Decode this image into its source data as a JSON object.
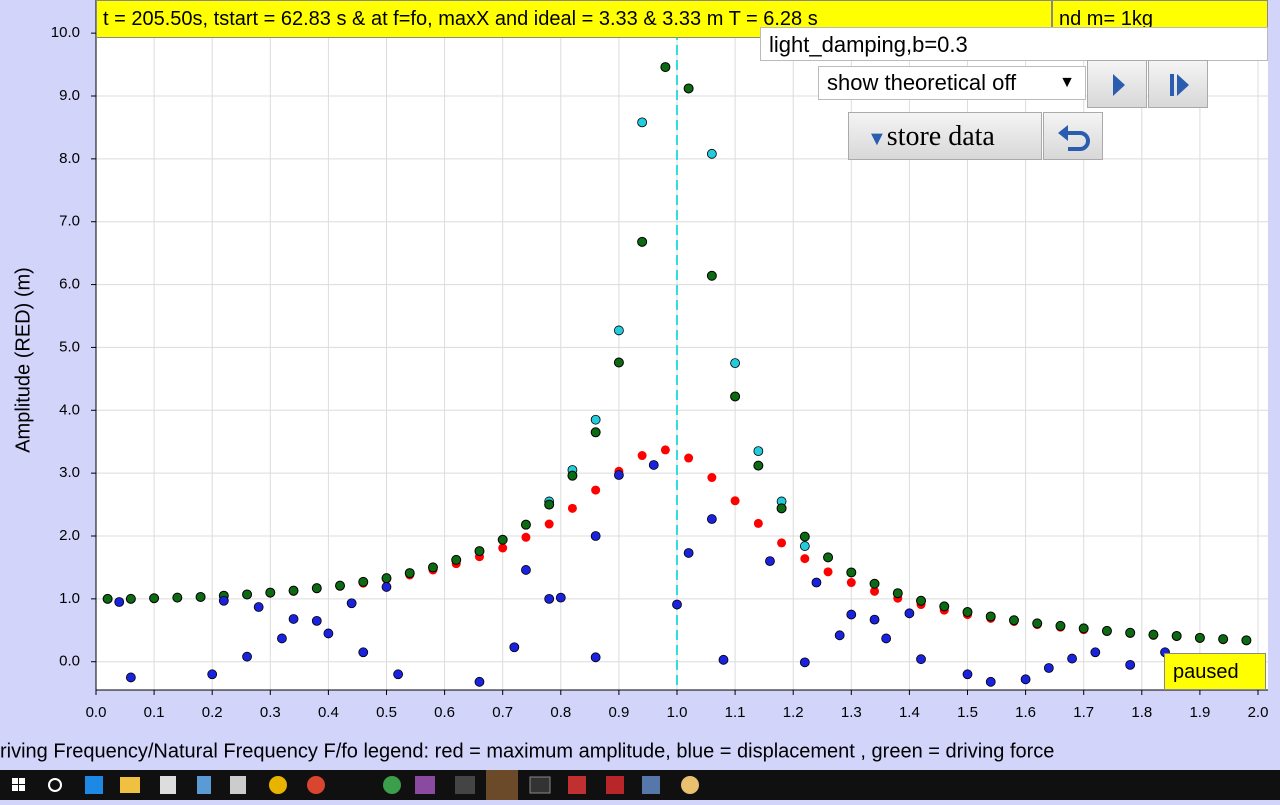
{
  "header": {
    "status_text": "t = 205.50s, tstart = 62.83 s & at f=fo, maxX and ideal = 3.33 & 3.33 m T = 6.28 s",
    "mass_text": "nd m= 1kg"
  },
  "controls": {
    "damping_field": "light_damping,b=0.3",
    "theory_select": "show theoretical off",
    "store_button": "store data",
    "state_label": "paused"
  },
  "chart_data": {
    "type": "scatter",
    "x_label": "riving Frequency/Natural Frequency F/fo legend: red = maximum amplitude, blue = displacement , green = driving force",
    "y_label": "Amplitude (RED) (m)",
    "xlim": [
      0,
      2.0
    ],
    "ylim": [
      -0.45,
      10.4
    ],
    "grid": true,
    "xticks": [
      {
        "value": 0,
        "label": "0.0"
      },
      0.1,
      0.2,
      0.3,
      0.4,
      0.5,
      0.6,
      0.7,
      0.8,
      0.9,
      {
        "value": 1,
        "label": "1.0"
      },
      1.1,
      1.2,
      1.3,
      1.4,
      1.5,
      1.6,
      1.7,
      1.8,
      1.9,
      {
        "value": 2,
        "label": "2.0"
      }
    ],
    "yticks": [
      {
        "value": 0,
        "label": "0.0"
      },
      {
        "value": 1,
        "label": "1.0"
      },
      {
        "value": 2,
        "label": "2.0"
      },
      {
        "value": 3,
        "label": "3.0"
      },
      {
        "value": 4,
        "label": "4.0"
      },
      {
        "value": 5,
        "label": "5.0"
      },
      {
        "value": 6,
        "label": "6.0"
      },
      {
        "value": 7,
        "label": "7.0"
      },
      {
        "value": 8,
        "label": "8.0"
      },
      {
        "value": 9,
        "label": "9.0"
      },
      {
        "value": 10,
        "label": "10.0"
      }
    ],
    "x": [
      0.02,
      0.06,
      0.1,
      0.14,
      0.18,
      0.22,
      0.26,
      0.3,
      0.34,
      0.38,
      0.42,
      0.46,
      0.5,
      0.54,
      0.58,
      0.62,
      0.66,
      0.7,
      0.74,
      0.78,
      0.82,
      0.86,
      0.9,
      0.94,
      0.98,
      1.02,
      1.06,
      1.1,
      1.14,
      1.18,
      1.22,
      1.26,
      1.3,
      1.34,
      1.38,
      1.42,
      1.46,
      1.5,
      1.54,
      1.58,
      1.62,
      1.66,
      1.7,
      1.74,
      1.78,
      1.82,
      1.86,
      1.9,
      1.94,
      1.98
    ],
    "series": [
      {
        "color": "#ff0000",
        "values": [
          1.0,
          1.0,
          1.01,
          1.02,
          1.03,
          1.05,
          1.07,
          1.09,
          1.12,
          1.16,
          1.2,
          1.25,
          1.31,
          1.38,
          1.46,
          1.56,
          1.67,
          1.81,
          1.98,
          2.19,
          2.44,
          2.73,
          3.03,
          3.28,
          3.37,
          3.24,
          2.93,
          2.56,
          2.2,
          1.89,
          1.64,
          1.43,
          1.26,
          1.12,
          1.01,
          0.91,
          0.82,
          0.75,
          0.69,
          0.64,
          0.59,
          0.55,
          0.51,
          0.48,
          0.45,
          0.42,
          0.4,
          0.37,
          0.35,
          0.34
        ]
      },
      {
        "color": "#22ccdd",
        "values": [
          null,
          null,
          null,
          null,
          null,
          null,
          null,
          null,
          null,
          null,
          null,
          null,
          null,
          null,
          null,
          null,
          null,
          null,
          null,
          2.55,
          3.05,
          3.85,
          5.27,
          8.58,
          null,
          null,
          8.08,
          4.75,
          3.35,
          2.55,
          1.84,
          null,
          null,
          null,
          null,
          null,
          null,
          null,
          null,
          null,
          null,
          null,
          null,
          null,
          null,
          null,
          null,
          null,
          null,
          null
        ]
      },
      {
        "color": "#0b6a12",
        "values": [
          1.0,
          1.0,
          1.01,
          1.02,
          1.03,
          1.05,
          1.07,
          1.1,
          1.13,
          1.17,
          1.21,
          1.27,
          1.33,
          1.41,
          1.5,
          1.62,
          1.76,
          1.94,
          2.18,
          2.5,
          2.96,
          3.65,
          4.76,
          6.68,
          9.46,
          9.12,
          6.14,
          4.22,
          3.12,
          2.44,
          1.99,
          1.66,
          1.42,
          1.24,
          1.09,
          0.97,
          0.88,
          0.79,
          0.72,
          0.66,
          0.61,
          0.57,
          0.53,
          0.49,
          0.46,
          0.43,
          0.41,
          0.38,
          0.36,
          0.34
        ]
      },
      {
        "color": "#1a22dd",
        "x": [
          0.04,
          0.06,
          0.2,
          0.22,
          0.26,
          0.28,
          0.32,
          0.34,
          0.38,
          0.4,
          0.44,
          0.46,
          0.5,
          0.52,
          0.66,
          0.72,
          0.74,
          0.78,
          0.8,
          0.86,
          0.86,
          0.9,
          0.96,
          1.0,
          1.02,
          1.06,
          1.08,
          1.16,
          1.22,
          1.24,
          1.28,
          1.3,
          1.34,
          1.36,
          1.4,
          1.42,
          1.5,
          1.54,
          1.6,
          1.64,
          1.68,
          1.72,
          1.78,
          1.84
        ],
        "values": [
          0.95,
          -0.25,
          -0.2,
          0.97,
          0.08,
          0.87,
          0.37,
          0.68,
          0.65,
          0.45,
          0.93,
          0.15,
          1.19,
          -0.2,
          -0.32,
          0.23,
          1.46,
          1.0,
          1.02,
          2.0,
          0.07,
          2.97,
          3.13,
          0.91,
          1.73,
          2.27,
          0.03,
          1.6,
          -0.01,
          1.26,
          0.42,
          0.75,
          0.67,
          0.37,
          0.77,
          0.04,
          -0.2,
          -0.32,
          -0.28,
          -0.1,
          0.05,
          0.15,
          -0.05,
          0.15
        ]
      }
    ]
  }
}
